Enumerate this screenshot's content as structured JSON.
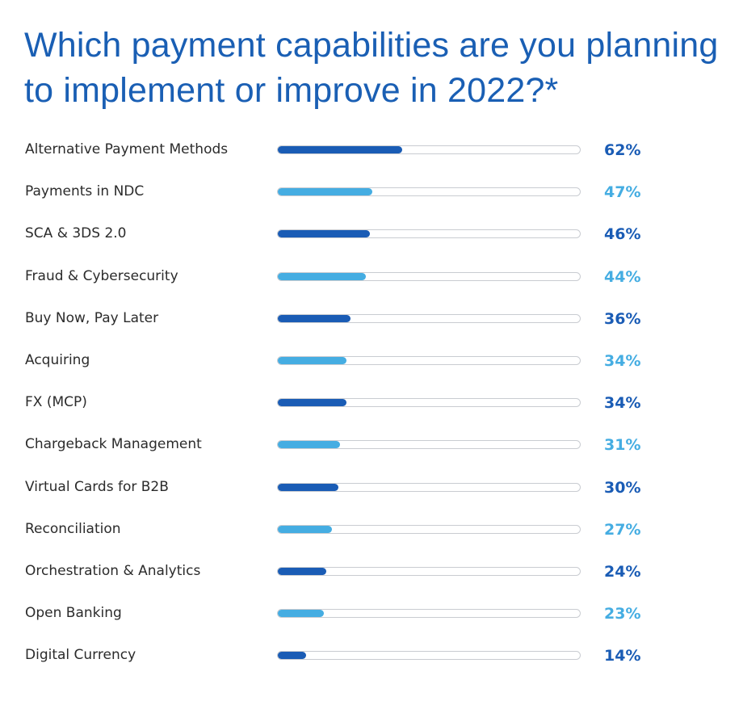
{
  "title": "Which payment capabilities are you planning to implement or improve in 2022?*",
  "colors": {
    "title": "#1a5fb4",
    "dark": "#1a5cb5",
    "light": "#45ade2",
    "track_border": "#c9ccd1"
  },
  "chart_data": {
    "type": "bar",
    "orientation": "horizontal",
    "title": "Which payment capabilities are you planning to implement or improve in 2022?*",
    "value_unit": "%",
    "xlim": [
      0,
      100
    ],
    "grid": false,
    "legend": "none",
    "categories": [
      "Alternative Payment Methods",
      "Payments in NDC",
      "SCA & 3DS 2.0",
      "Fraud & Cybersecurity",
      "Buy Now, Pay Later",
      "Acquiring",
      "FX (MCP)",
      "Chargeback Management",
      "Virtual Cards for B2B",
      "Reconciliation",
      "Orchestration & Analytics",
      "Open Banking",
      "Digital Currency"
    ],
    "values": [
      62,
      47,
      46,
      44,
      36,
      34,
      34,
      31,
      30,
      27,
      24,
      23,
      14
    ],
    "value_labels": [
      "62%",
      "47%",
      "46%",
      "44%",
      "36%",
      "34%",
      "34%",
      "31%",
      "30%",
      "27%",
      "24%",
      "23%",
      "14%"
    ],
    "bar_colors": [
      "dark",
      "light",
      "dark",
      "light",
      "dark",
      "light",
      "dark",
      "light",
      "dark",
      "light",
      "dark",
      "light",
      "dark"
    ]
  }
}
